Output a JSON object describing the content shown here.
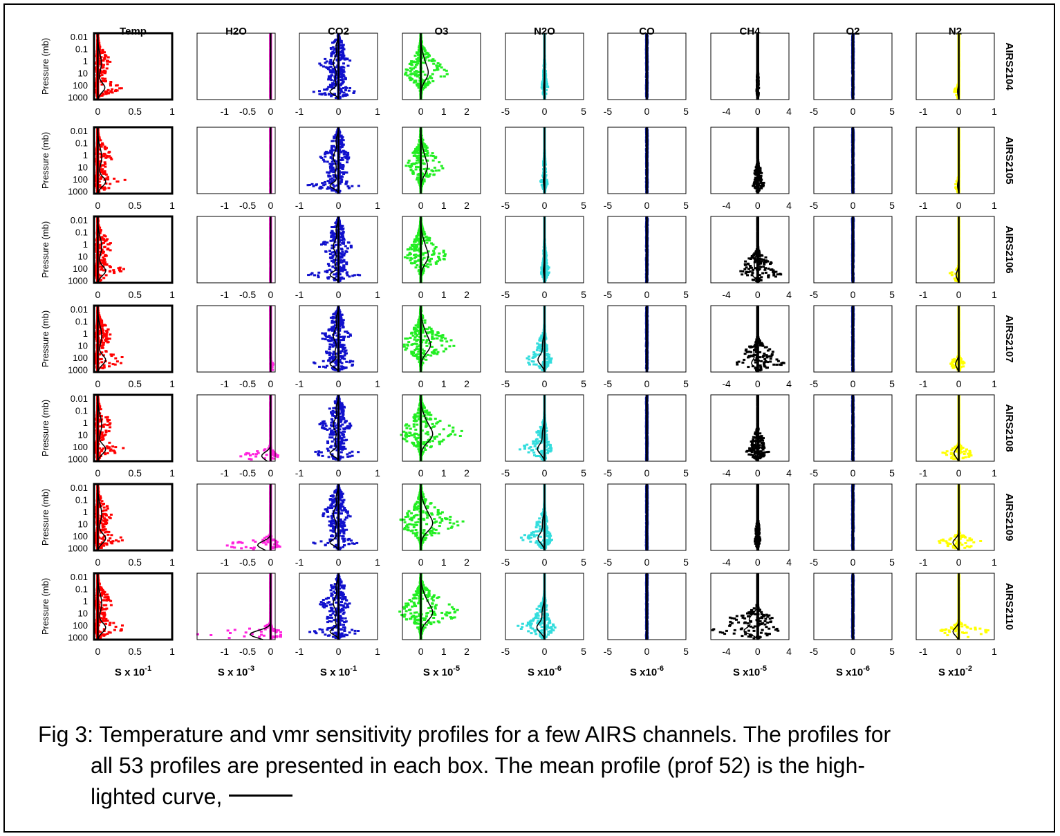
{
  "chart_data": {
    "type": "scatter",
    "layout": "small-multiples grid, 7 rows (channels) x 9 columns (gases)",
    "columns": [
      {
        "key": "temp",
        "title": "Temp",
        "color": "#ff0000",
        "ticks": [
          "0",
          "0.5",
          "1"
        ],
        "tickvals": [
          0,
          0.5,
          1
        ],
        "xlim": [
          -0.05,
          1
        ],
        "unit_base": "S x 10",
        "unit_exp": "-1"
      },
      {
        "key": "h2o",
        "title": "H2O",
        "color": "#ff22dd",
        "ticks": [
          "-1",
          "-0.5",
          "0"
        ],
        "tickvals": [
          -1,
          -0.5,
          0
        ],
        "xlim": [
          -1.6,
          0.1
        ],
        "unit_base": "S x 10",
        "unit_exp": "-3"
      },
      {
        "key": "co2",
        "title": "CO2",
        "color": "#1010cc",
        "ticks": [
          "-1",
          "0",
          "1"
        ],
        "tickvals": [
          -1,
          0,
          1
        ],
        "xlim": [
          -1,
          1
        ],
        "unit_base": "S x 10",
        "unit_exp": "-1"
      },
      {
        "key": "o3",
        "title": "O3",
        "color": "#22ee22",
        "ticks": [
          "0",
          "1",
          "2"
        ],
        "tickvals": [
          0,
          1,
          2
        ],
        "xlim": [
          -0.8,
          2.6
        ],
        "unit_base": "S x 10",
        "unit_exp": "-5"
      },
      {
        "key": "n2o",
        "title": "N2O",
        "color": "#33dddd",
        "ticks": [
          "-5",
          "0",
          "5"
        ],
        "tickvals": [
          -5,
          0,
          5
        ],
        "xlim": [
          -5,
          5
        ],
        "unit_base": "S x10",
        "unit_exp": "-6"
      },
      {
        "key": "co",
        "title": "CO",
        "color": "#0a1a8a",
        "ticks": [
          "-5",
          "0",
          "5"
        ],
        "tickvals": [
          -5,
          0,
          5
        ],
        "xlim": [
          -5,
          5
        ],
        "unit_base": "S x10",
        "unit_exp": "-6"
      },
      {
        "key": "ch4",
        "title": "CH4",
        "color": "#000000",
        "ticks": [
          "-4",
          "0",
          "4"
        ],
        "tickvals": [
          -4,
          0,
          4
        ],
        "xlim": [
          -6,
          4
        ],
        "unit_base": "S x10",
        "unit_exp": "-5"
      },
      {
        "key": "o2",
        "title": "O2",
        "color": "#0a1a8a",
        "ticks": [
          "-5",
          "0",
          "5"
        ],
        "tickvals": [
          -5,
          0,
          5
        ],
        "xlim": [
          -5,
          5
        ],
        "unit_base": "S x10",
        "unit_exp": "-6"
      },
      {
        "key": "n2",
        "title": "N2",
        "color": "#ffff00",
        "ticks": [
          "-1",
          "0",
          "1"
        ],
        "tickvals": [
          -1,
          0,
          1
        ],
        "xlim": [
          -1.2,
          1
        ],
        "unit_base": "S x10",
        "unit_exp": "-2"
      }
    ],
    "rows": [
      "AIRS2104",
      "AIRS2105",
      "AIRS2106",
      "AIRS2107",
      "AIRS2108",
      "AIRS2109",
      "AIRS2110"
    ],
    "ylabel": "Pressure (mb)",
    "yticks": [
      "0.01",
      "0.1",
      "1",
      "10",
      "100",
      "1000"
    ],
    "ytickvals": [
      0.01,
      0.1,
      1,
      10,
      100,
      1000
    ],
    "yscale": "log",
    "yreversed": true,
    "ylim": [
      0.005,
      1600
    ],
    "mean_profile_color": "#000000",
    "spread": [
      [
        [
          0.45,
          0.05
        ],
        [
          0,
          0
        ],
        [
          0.55,
          0.8
        ],
        [
          1.0,
          0.6
        ],
        [
          0.45,
          0.4
        ],
        [
          0.02,
          0.02
        ],
        [
          0.15,
          0.12
        ],
        [
          0.02,
          0.02
        ],
        [
          0,
          0.12
        ]
      ],
      [
        [
          0.5,
          0.05
        ],
        [
          0,
          0
        ],
        [
          0.55,
          0.8
        ],
        [
          0.9,
          0.6
        ],
        [
          0.4,
          0.5
        ],
        [
          0.02,
          0.02
        ],
        [
          0.8,
          0.6
        ],
        [
          0.02,
          0.02
        ],
        [
          0,
          0.12
        ]
      ],
      [
        [
          0.5,
          0.05
        ],
        [
          0,
          0
        ],
        [
          0.55,
          0.8
        ],
        [
          1.0,
          0.6
        ],
        [
          0.7,
          0.5
        ],
        [
          0.02,
          0.02
        ],
        [
          3.0,
          2.5
        ],
        [
          0.02,
          0.02
        ],
        [
          0,
          0.25
        ]
      ],
      [
        [
          0.5,
          0.05
        ],
        [
          0.06,
          0
        ],
        [
          0.55,
          0.8
        ],
        [
          1.3,
          0.7
        ],
        [
          0.9,
          3.0
        ],
        [
          0.02,
          0.02
        ],
        [
          3.2,
          2.7
        ],
        [
          0.02,
          0.02
        ],
        [
          0.15,
          0.3
        ]
      ],
      [
        [
          0.5,
          0.05
        ],
        [
          0.15,
          0.65
        ],
        [
          0.55,
          0.8
        ],
        [
          1.6,
          0.8
        ],
        [
          1.0,
          3.2
        ],
        [
          0.02,
          0.02
        ],
        [
          1.4,
          1.5
        ],
        [
          0.02,
          0.02
        ],
        [
          0.4,
          0.45
        ]
      ],
      [
        [
          0.5,
          0.05
        ],
        [
          0.2,
          0.95
        ],
        [
          0.55,
          0.8
        ],
        [
          1.6,
          0.8
        ],
        [
          1.0,
          3.0
        ],
        [
          0.02,
          0.02
        ],
        [
          0.35,
          0.35
        ],
        [
          0.02,
          0.02
        ],
        [
          0.6,
          0.55
        ]
      ],
      [
        [
          0.5,
          0.05
        ],
        [
          0.3,
          1.5
        ],
        [
          0.55,
          0.8
        ],
        [
          1.6,
          0.8
        ],
        [
          1.5,
          3.5
        ],
        [
          0.02,
          0.02
        ],
        [
          3.0,
          6.0
        ],
        [
          0.02,
          0.02
        ],
        [
          0.8,
          0.55
        ]
      ]
    ],
    "title": ""
  },
  "caption": {
    "line1": "Fig 3: Temperature and vmr sensitivity profiles for a few AIRS channels.  The profiles for",
    "line2": "all 53 profiles are presented in each box.  The mean profile (prof 52) is the high-",
    "line3": "lighted curve,"
  }
}
